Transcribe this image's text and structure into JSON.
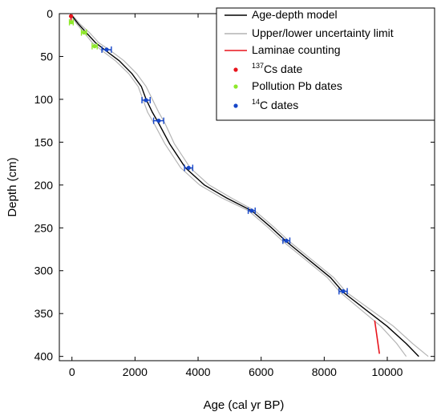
{
  "chart_data": {
    "type": "scatter",
    "xlabel": "Age (cal yr BP)",
    "ylabel": "Depth (cm)",
    "xlim": [
      -400,
      11500
    ],
    "ylim": [
      0,
      405
    ],
    "y_inverted": true,
    "xticks": [
      0,
      2000,
      4000,
      6000,
      8000,
      10000
    ],
    "yticks": [
      0,
      50,
      100,
      150,
      200,
      250,
      300,
      350,
      400
    ],
    "grid": false,
    "legend_position": "top-right",
    "colors": {
      "model": "#000000",
      "uncertainty": "#b4b4b4",
      "laminae": "#e8141c",
      "cs": "#e8141c",
      "pb": "#8ee82a",
      "c14": "#1646c8"
    },
    "legend": [
      {
        "key": "model",
        "kind": "line",
        "label": "Age-depth model",
        "sup": ""
      },
      {
        "key": "uncertainty",
        "kind": "line",
        "label": "Upper/lower uncertainty limit",
        "sup": ""
      },
      {
        "key": "laminae",
        "kind": "line",
        "label": "Laminae counting",
        "sup": ""
      },
      {
        "key": "cs",
        "kind": "dot",
        "label": "Cs date",
        "sup": "137"
      },
      {
        "key": "pb",
        "kind": "dot",
        "label": "Pollution Pb dates",
        "sup": ""
      },
      {
        "key": "c14",
        "kind": "dot",
        "label": "C dates",
        "sup": "14"
      }
    ],
    "series": [
      {
        "key": "model",
        "kind": "line",
        "x": [
          -50,
          200,
          450,
          750,
          1100,
          1500,
          1900,
          2200,
          2350,
          2550,
          2750,
          3100,
          3600,
          4200,
          4900,
          5700,
          6300,
          6800,
          7500,
          8200,
          8600,
          9300,
          10000,
          10600,
          11000
        ],
        "y": [
          0,
          12,
          22,
          34,
          44,
          55,
          70,
          85,
          100,
          115,
          128,
          152,
          180,
          200,
          215,
          230,
          249,
          266,
          287,
          308,
          325,
          345,
          365,
          385,
          400
        ]
      },
      {
        "key": "upper_limit",
        "kind": "line",
        "x": [
          -30,
          250,
          550,
          850,
          1250,
          1650,
          2050,
          2350,
          2550,
          2750,
          2950,
          3250,
          3750,
          4350,
          5050,
          5800,
          6400,
          6900,
          7600,
          8300,
          8700,
          9450,
          10200,
          10800,
          11300
        ],
        "y": [
          0,
          12,
          22,
          34,
          44,
          55,
          70,
          85,
          100,
          115,
          128,
          152,
          180,
          200,
          215,
          230,
          249,
          266,
          287,
          308,
          325,
          345,
          365,
          385,
          400
        ]
      },
      {
        "key": "lower_limit",
        "kind": "line",
        "x": [
          -70,
          150,
          380,
          650,
          980,
          1380,
          1800,
          2100,
          2250,
          2400,
          2600,
          2950,
          3450,
          4050,
          4750,
          5600,
          6200,
          6700,
          7400,
          8100,
          8500,
          9150,
          9800,
          10300,
          10600
        ],
        "y": [
          0,
          12,
          22,
          34,
          44,
          55,
          70,
          85,
          100,
          115,
          128,
          152,
          180,
          200,
          215,
          230,
          249,
          266,
          287,
          308,
          325,
          345,
          365,
          385,
          400
        ]
      },
      {
        "key": "laminae",
        "kind": "line",
        "segments": [
          {
            "x": [
              -30,
              -30
            ],
            "y": [
              1,
              8
            ]
          },
          {
            "x": [
              9600,
              9750
            ],
            "y": [
              358,
              397
            ]
          }
        ]
      },
      {
        "key": "cs",
        "kind": "points",
        "name": "137Cs date",
        "points": [
          {
            "x": -30,
            "y": 3
          }
        ]
      },
      {
        "key": "pb",
        "kind": "points",
        "name": "Pollution Pb dates",
        "points": [
          {
            "x": -20,
            "y": 10,
            "xerr": 60
          },
          {
            "x": 380,
            "y": 22,
            "xerr": 80
          },
          {
            "x": 720,
            "y": 38,
            "xerr": 80
          }
        ]
      },
      {
        "key": "c14",
        "kind": "points",
        "name": "14C dates",
        "points": [
          {
            "x": 1100,
            "y": 42,
            "xerr": 150
          },
          {
            "x": 2350,
            "y": 101,
            "xerr": 130
          },
          {
            "x": 2750,
            "y": 125,
            "xerr": 160
          },
          {
            "x": 3700,
            "y": 180,
            "xerr": 130
          },
          {
            "x": 5700,
            "y": 230,
            "xerr": 110
          },
          {
            "x": 6800,
            "y": 265,
            "xerr": 110
          },
          {
            "x": 8600,
            "y": 324,
            "xerr": 130
          }
        ]
      }
    ]
  }
}
